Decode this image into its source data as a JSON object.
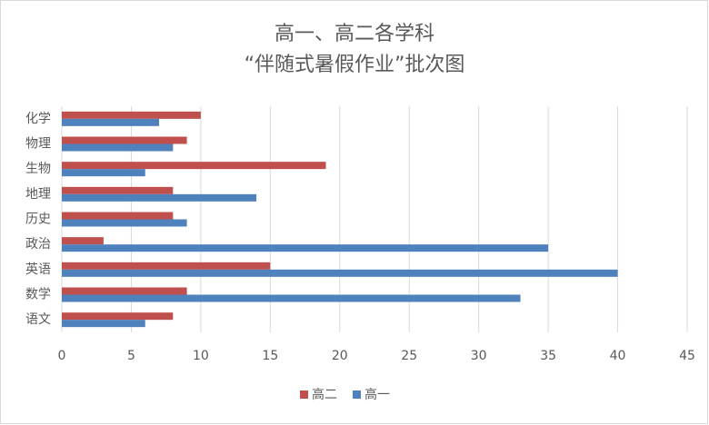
{
  "chart_data": {
    "type": "hbar",
    "title": [
      "高一、高二各学科",
      "“伴随式暑假作业”批次图"
    ],
    "categories": [
      "化学",
      "物理",
      "生物",
      "地理",
      "历史",
      "政治",
      "英语",
      "数学",
      "语文"
    ],
    "series": [
      {
        "name": "高二",
        "color": "#c0504d",
        "values": [
          10,
          9,
          19,
          8,
          8,
          3,
          15,
          9,
          8
        ]
      },
      {
        "name": "高一",
        "color": "#4f81bd",
        "values": [
          7,
          8,
          6,
          14,
          9,
          35,
          40,
          33,
          6
        ]
      }
    ],
    "xlim": [
      0,
      45
    ],
    "xticks": [
      0,
      5,
      10,
      15,
      20,
      25,
      30,
      35,
      40,
      45
    ],
    "grid": true,
    "legend": "bottom"
  }
}
